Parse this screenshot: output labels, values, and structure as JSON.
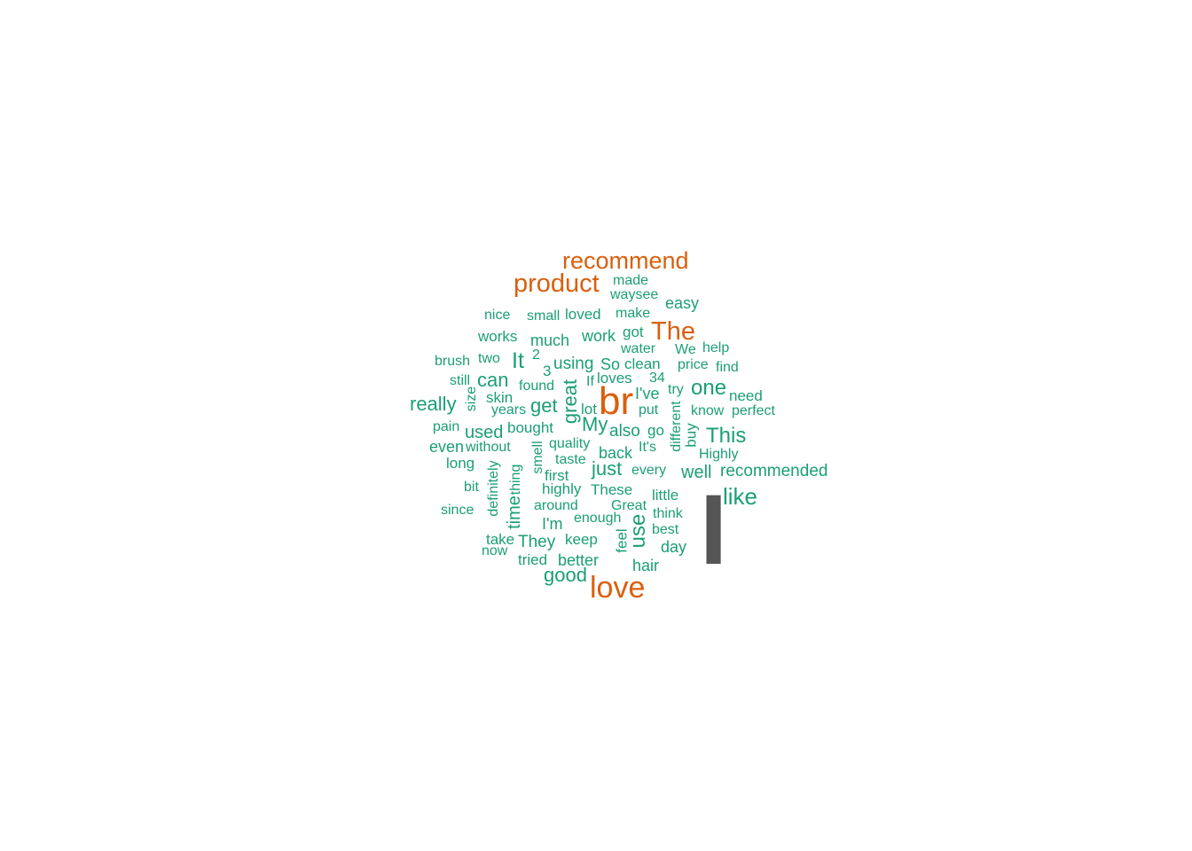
{
  "colors": {
    "primary": "#d95f0e",
    "secondary": "#1b9e77",
    "accent": "#555555"
  },
  "words": {
    "recommend": "recommend",
    "product": "product",
    "made": "made",
    "waysee": "waysee",
    "easy": "easy",
    "nice": "nice",
    "small": "small",
    "loved": "loved",
    "make": "make",
    "works": "works",
    "much": "much",
    "work": "work",
    "got": "got",
    "The": "The",
    "water": "water",
    "We": "We",
    "help": "help",
    "brush": "brush",
    "two": "two",
    "It": "It",
    "2": "2",
    "3": "3",
    "using": "using",
    "So": "So",
    "clean": "clean",
    "price": "price",
    "find": "find",
    "still": "still",
    "can": "can",
    "found": "found",
    "If": "If",
    "loves": "loves",
    "34": "34",
    "I've": "I've",
    "try": "try",
    "one": "one",
    "need": "need",
    "size": "size",
    "skin": "skin",
    "great": "great",
    "br": "br",
    "really": "really",
    "years": "years",
    "get": "get",
    "lot": "lot",
    "put": "put",
    "know": "know",
    "perfect": "perfect",
    "pain": "pain",
    "used": "used",
    "bought": "bought",
    "My": "My",
    "also": "also",
    "go": "go",
    "different": "different",
    "buy": "buy",
    "This": "This",
    "even": "even",
    "without": "without",
    "smell": "smell",
    "quality": "quality",
    "It's": "It's",
    "long": "long",
    "taste": "taste",
    "back": "back",
    "Highly": "Highly",
    "definitely": "definitely",
    "thing": "thing",
    "first": "first",
    "just": "just",
    "every": "every",
    "well": "well",
    "recommended": "recommended",
    "bit": "bit",
    "highly": "highly",
    "These": "These",
    "little": "little",
    "I": "I",
    "like": "like",
    "since": "since",
    "time": "time",
    "around": "around",
    "Great": "Great",
    "think": "think",
    "I'm": "I'm",
    "enough": "enough",
    "use": "use",
    "best": "best",
    "take": "take",
    "They": "They",
    "keep": "keep",
    "feel": "feel",
    "day": "day",
    "now": "now",
    "tried": "tried",
    "better": "better",
    "hair": "hair",
    "good": "good",
    "love": "love"
  }
}
